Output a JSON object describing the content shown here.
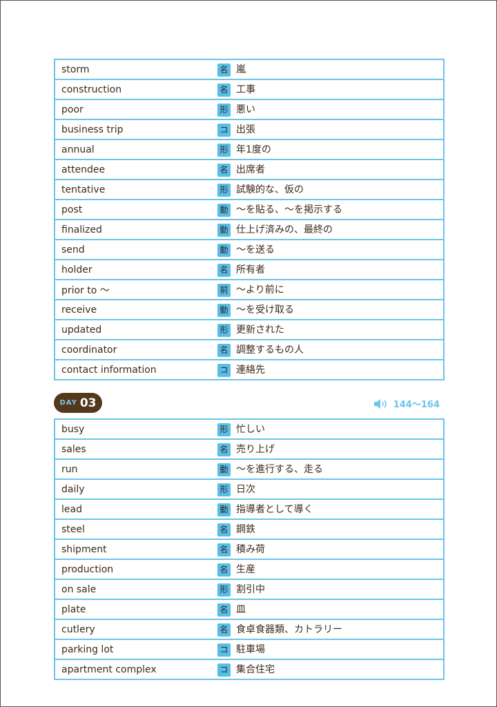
{
  "section1": {
    "rows": [
      {
        "en": "storm",
        "pos": "名",
        "jp": "嵐"
      },
      {
        "en": "construction",
        "pos": "名",
        "jp": "工事"
      },
      {
        "en": "poor",
        "pos": "形",
        "jp": "悪い"
      },
      {
        "en": "business trip",
        "pos": "コ",
        "jp": "出張"
      },
      {
        "en": "annual",
        "pos": "形",
        "jp": "年1度の"
      },
      {
        "en": "attendee",
        "pos": "名",
        "jp": "出席者"
      },
      {
        "en": "tentative",
        "pos": "形",
        "jp": "試験的な、仮の"
      },
      {
        "en": "post",
        "pos": "動",
        "jp": "～を貼る、～を掲示する"
      },
      {
        "en": "finalized",
        "pos": "動",
        "jp": "仕上げ済みの、最終の"
      },
      {
        "en": "send",
        "pos": "動",
        "jp": "～を送る"
      },
      {
        "en": "holder",
        "pos": "名",
        "jp": "所有者"
      },
      {
        "en": "prior to ～",
        "pos": "前",
        "jp": "～より前に"
      },
      {
        "en": "receive",
        "pos": "動",
        "jp": "～を受け取る"
      },
      {
        "en": "updated",
        "pos": "形",
        "jp": "更新された"
      },
      {
        "en": "coordinator",
        "pos": "名",
        "jp": "調整するもの人"
      },
      {
        "en": "contact information",
        "pos": "コ",
        "jp": "連絡先"
      }
    ]
  },
  "day": {
    "label": "DAY",
    "number": "03"
  },
  "audio": {
    "icon": "speaker-icon",
    "range": "144～164"
  },
  "section2": {
    "rows": [
      {
        "en": "busy",
        "pos": "形",
        "jp": "忙しい"
      },
      {
        "en": "sales",
        "pos": "名",
        "jp": "売り上げ"
      },
      {
        "en": "run",
        "pos": "動",
        "jp": "～を進行する、走る"
      },
      {
        "en": "daily",
        "pos": "形",
        "jp": "日次"
      },
      {
        "en": "lead",
        "pos": "動",
        "jp": "指導者として導く"
      },
      {
        "en": "steel",
        "pos": "名",
        "jp": "鋼鉄"
      },
      {
        "en": "shipment",
        "pos": "名",
        "jp": "積み荷"
      },
      {
        "en": "production",
        "pos": "名",
        "jp": "生産"
      },
      {
        "en": "on sale",
        "pos": "形",
        "jp": "割引中"
      },
      {
        "en": "plate",
        "pos": "名",
        "jp": "皿"
      },
      {
        "en": "cutlery",
        "pos": "名",
        "jp": "食卓食器類、カトラリー"
      },
      {
        "en": "parking lot",
        "pos": "コ",
        "jp": "駐車場"
      },
      {
        "en": "apartment complex",
        "pos": "コ",
        "jp": "集合住宅"
      }
    ]
  },
  "colors": {
    "border": "#6cc4ea",
    "badge": "#5bbde4",
    "day_pill": "#54381c",
    "text": "#3b2a1a"
  }
}
